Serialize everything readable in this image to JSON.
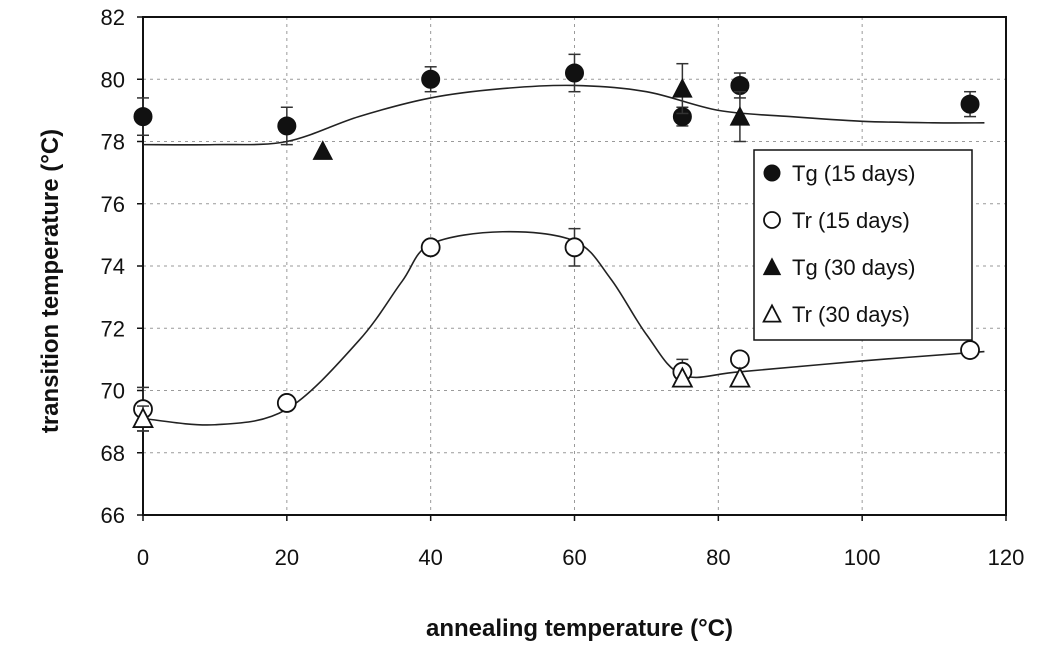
{
  "chart_data": {
    "type": "scatter",
    "title": "",
    "xlabel": "annealing temperature (°C)",
    "ylabel": "transition temperature (°C)",
    "xlim": [
      0,
      120
    ],
    "ylim": [
      66,
      82
    ],
    "x_ticks": [
      0,
      20,
      40,
      60,
      80,
      100,
      120
    ],
    "y_ticks": [
      66,
      68,
      70,
      72,
      74,
      76,
      78,
      80,
      82
    ],
    "grid": true,
    "legend_position": "right, upper middle",
    "series": [
      {
        "name": "Tg (15 days)",
        "marker": "filled-circle",
        "color": "#111111",
        "points": [
          {
            "x": 0,
            "y": 78.8,
            "err": 0.6
          },
          {
            "x": 20,
            "y": 78.5,
            "err": 0.6
          },
          {
            "x": 40,
            "y": 80.0,
            "err": 0.4
          },
          {
            "x": 60,
            "y": 80.2,
            "err": 0.6
          },
          {
            "x": 75,
            "y": 78.8,
            "err": 0.3
          },
          {
            "x": 83,
            "y": 79.8,
            "err": 0.4
          },
          {
            "x": 115,
            "y": 79.2,
            "err": 0.4
          }
        ]
      },
      {
        "name": "Tr (15 days)",
        "marker": "open-circle",
        "color": "#111111",
        "points": [
          {
            "x": 0,
            "y": 69.4,
            "err": 0.7
          },
          {
            "x": 20,
            "y": 69.6,
            "err": 0
          },
          {
            "x": 40,
            "y": 74.6,
            "err": 0
          },
          {
            "x": 60,
            "y": 74.6,
            "err": 0.6
          },
          {
            "x": 75,
            "y": 70.6,
            "err": 0.4
          },
          {
            "x": 83,
            "y": 71.0,
            "err": 0
          },
          {
            "x": 115,
            "y": 71.3,
            "err": 0
          }
        ]
      },
      {
        "name": "Tg (30 days)",
        "marker": "filled-triangle",
        "color": "#111111",
        "points": [
          {
            "x": 25,
            "y": 77.7,
            "err": 0
          },
          {
            "x": 75,
            "y": 79.7,
            "err": 0.8
          },
          {
            "x": 83,
            "y": 78.8,
            "err": 0.8
          }
        ]
      },
      {
        "name": "Tr (30 days)",
        "marker": "open-triangle",
        "color": "#111111",
        "points": [
          {
            "x": 0,
            "y": 69.1,
            "err": 0.4
          },
          {
            "x": 75,
            "y": 70.4,
            "err": 0
          },
          {
            "x": 83,
            "y": 70.4,
            "err": 0
          }
        ]
      }
    ],
    "trend_lines": [
      {
        "for": "Tg",
        "points": [
          [
            0,
            77.9
          ],
          [
            10,
            77.9
          ],
          [
            20,
            78.0
          ],
          [
            30,
            78.8
          ],
          [
            40,
            79.4
          ],
          [
            50,
            79.7
          ],
          [
            60,
            79.8
          ],
          [
            70,
            79.6
          ],
          [
            80,
            79.0
          ],
          [
            90,
            78.8
          ],
          [
            100,
            78.65
          ],
          [
            110,
            78.6
          ],
          [
            117,
            78.6
          ]
        ]
      },
      {
        "for": "Tr",
        "points": [
          [
            0,
            69.1
          ],
          [
            10,
            68.9
          ],
          [
            20,
            69.4
          ],
          [
            30,
            71.6
          ],
          [
            36,
            73.5
          ],
          [
            40,
            74.7
          ],
          [
            50,
            75.1
          ],
          [
            60,
            74.8
          ],
          [
            65,
            73.6
          ],
          [
            70,
            71.8
          ],
          [
            75,
            70.5
          ],
          [
            83,
            70.6
          ],
          [
            100,
            70.95
          ],
          [
            117,
            71.25
          ]
        ]
      }
    ]
  }
}
